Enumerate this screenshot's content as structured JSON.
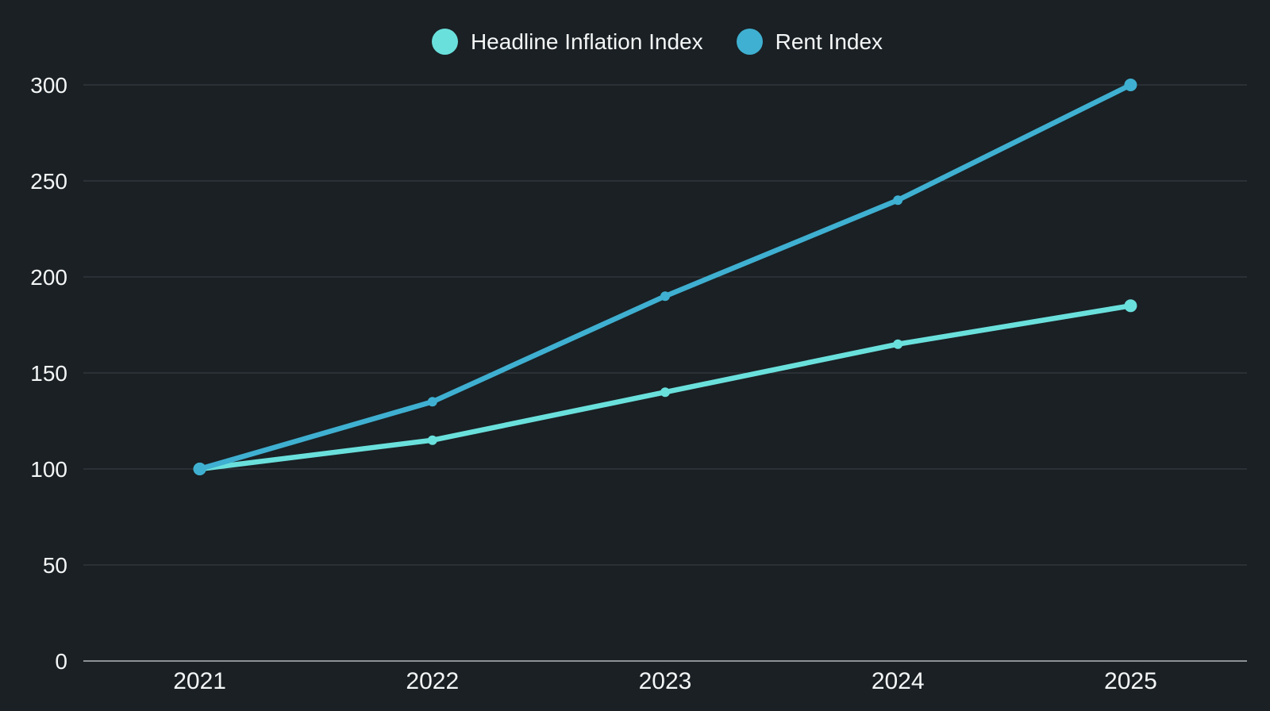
{
  "page": {
    "background_color": "#1A2024"
  },
  "legend": {
    "position": "top",
    "items": [
      {
        "label": "Headline Inflation Index",
        "color": "#6AE0DC"
      },
      {
        "label": "Rent Index",
        "color": "#3FB0D1"
      }
    ]
  },
  "chart_data": {
    "type": "line",
    "title": "",
    "xlabel": "",
    "ylabel": "",
    "categories": [
      "2021",
      "2022",
      "2023",
      "2024",
      "2025"
    ],
    "series": [
      {
        "name": "Headline Inflation Index",
        "color": "#6AE0DC",
        "values": [
          100,
          115,
          140,
          165,
          185
        ]
      },
      {
        "name": "Rent Index",
        "color": "#3FB0D1",
        "values": [
          100,
          135,
          190,
          240,
          300
        ]
      }
    ],
    "ylim": [
      0,
      300
    ],
    "yticks": [
      0,
      50,
      100,
      150,
      200,
      250,
      300
    ],
    "grid": true,
    "legend_position": "top",
    "colors": {
      "grid_line": "#3A4046",
      "axis_baseline": "#8C9296",
      "tick_label": "#F4F6F6"
    }
  }
}
